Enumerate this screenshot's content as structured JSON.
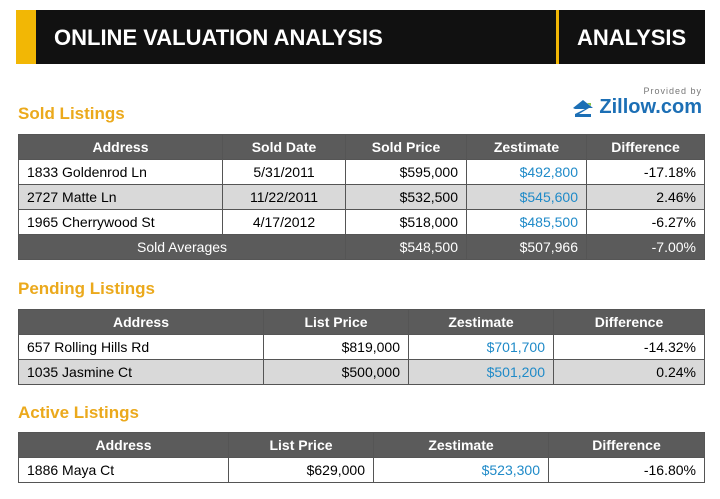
{
  "header": {
    "title": "ONLINE VALUATION ANALYSIS",
    "tag": "ANALYSIS"
  },
  "provider": {
    "label": "Provided by",
    "name": "Zillow.com"
  },
  "sections": [
    {
      "title": "Sold Listings",
      "columns": [
        "Address",
        "Sold Date",
        "Sold Price",
        "Zestimate",
        "Difference"
      ],
      "rows": [
        [
          "1833 Goldenrod Ln",
          "5/31/2011",
          "$595,000",
          "$492,800",
          "-17.18%"
        ],
        [
          "2727 Matte Ln",
          "11/22/2011",
          "$532,500",
          "$545,600",
          "2.46%"
        ],
        [
          "1965 Cherrywood St",
          "4/17/2012",
          "$518,000",
          "$485,500",
          "-6.27%"
        ]
      ],
      "footer": {
        "label": "Sold Averages",
        "values": [
          "$548,500",
          "$507,966",
          "-7.00%"
        ]
      }
    },
    {
      "title": "Pending Listings",
      "columns": [
        "Address",
        "List Price",
        "Zestimate",
        "Difference"
      ],
      "rows": [
        [
          "657 Rolling Hills Rd",
          "$819,000",
          "$701,700",
          "-14.32%"
        ],
        [
          "1035 Jasmine Ct",
          "$500,000",
          "$501,200",
          "0.24%"
        ]
      ]
    },
    {
      "title": "Active Listings",
      "columns": [
        "Address",
        "List Price",
        "Zestimate",
        "Difference"
      ],
      "rows": [
        [
          "1886 Maya Ct",
          "$629,000",
          "$523,300",
          "-16.80%"
        ]
      ]
    }
  ]
}
